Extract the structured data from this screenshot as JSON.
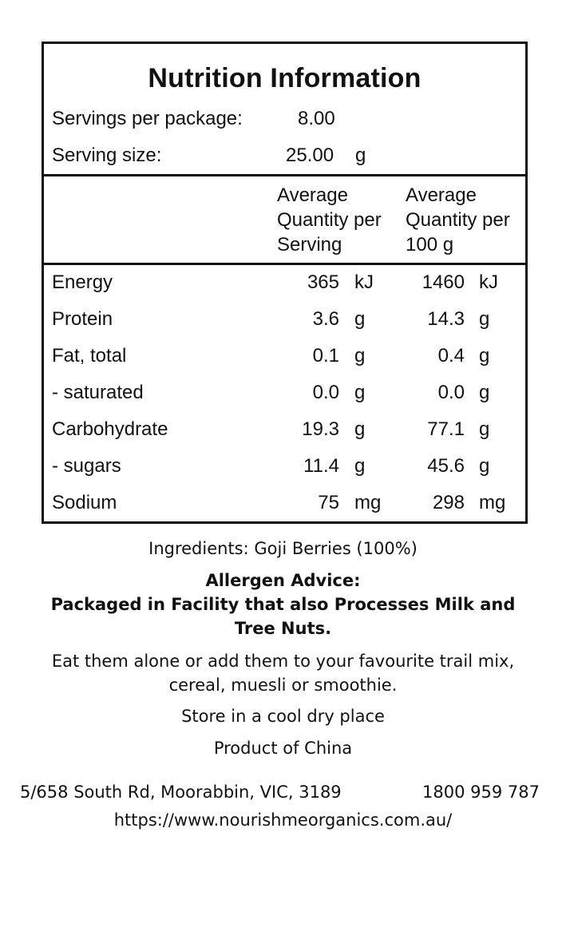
{
  "nutrition_panel": {
    "title": "Nutrition Information",
    "servings_per_package_label": "Servings per package:",
    "servings_per_package_value": "8.00",
    "serving_size_label": "Serving size:",
    "serving_size_value": "25.00",
    "serving_size_unit": "g",
    "column_headers": {
      "per_serving": [
        "Average",
        "Quantity per",
        "Serving"
      ],
      "per_100g": [
        "Average",
        "Quantity per",
        "100 g"
      ]
    },
    "rows": [
      {
        "name": "Energy",
        "per_serving": "365",
        "per_serving_unit": "kJ",
        "per_100g": "1460",
        "per_100g_unit": "kJ"
      },
      {
        "name": "Protein",
        "per_serving": "3.6",
        "per_serving_unit": "g",
        "per_100g": "14.3",
        "per_100g_unit": "g"
      },
      {
        "name": "Fat, total",
        "per_serving": "0.1",
        "per_serving_unit": "g",
        "per_100g": "0.4",
        "per_100g_unit": "g"
      },
      {
        "name": "- saturated",
        "per_serving": "0.0",
        "per_serving_unit": "g",
        "per_100g": "0.0",
        "per_100g_unit": "g"
      },
      {
        "name": "Carbohydrate",
        "per_serving": "19.3",
        "per_serving_unit": "g",
        "per_100g": "77.1",
        "per_100g_unit": "g"
      },
      {
        "name": "- sugars",
        "per_serving": "11.4",
        "per_serving_unit": "g",
        "per_100g": "45.6",
        "per_100g_unit": "g"
      },
      {
        "name": "Sodium",
        "per_serving": "75",
        "per_serving_unit": "mg",
        "per_100g": "298",
        "per_100g_unit": "mg"
      }
    ]
  },
  "ingredients": "Ingredients: Goji Berries (100%)",
  "allergen": {
    "heading": "Allergen Advice:",
    "line1": "Packaged in Facility that also Processes Milk and",
    "line2": "Tree Nuts."
  },
  "usage": {
    "line1": "Eat them alone or add them to your favourite trail mix,",
    "line2": "cereal, muesli or smoothie."
  },
  "storage": "Store in a cool dry place",
  "origin": "Product of China",
  "contact": {
    "address": "5/658 South Rd, Moorabbin, VIC, 3189",
    "phone": "1800 959 787",
    "website": "https://www.nourishmeorganics.com.au/"
  }
}
